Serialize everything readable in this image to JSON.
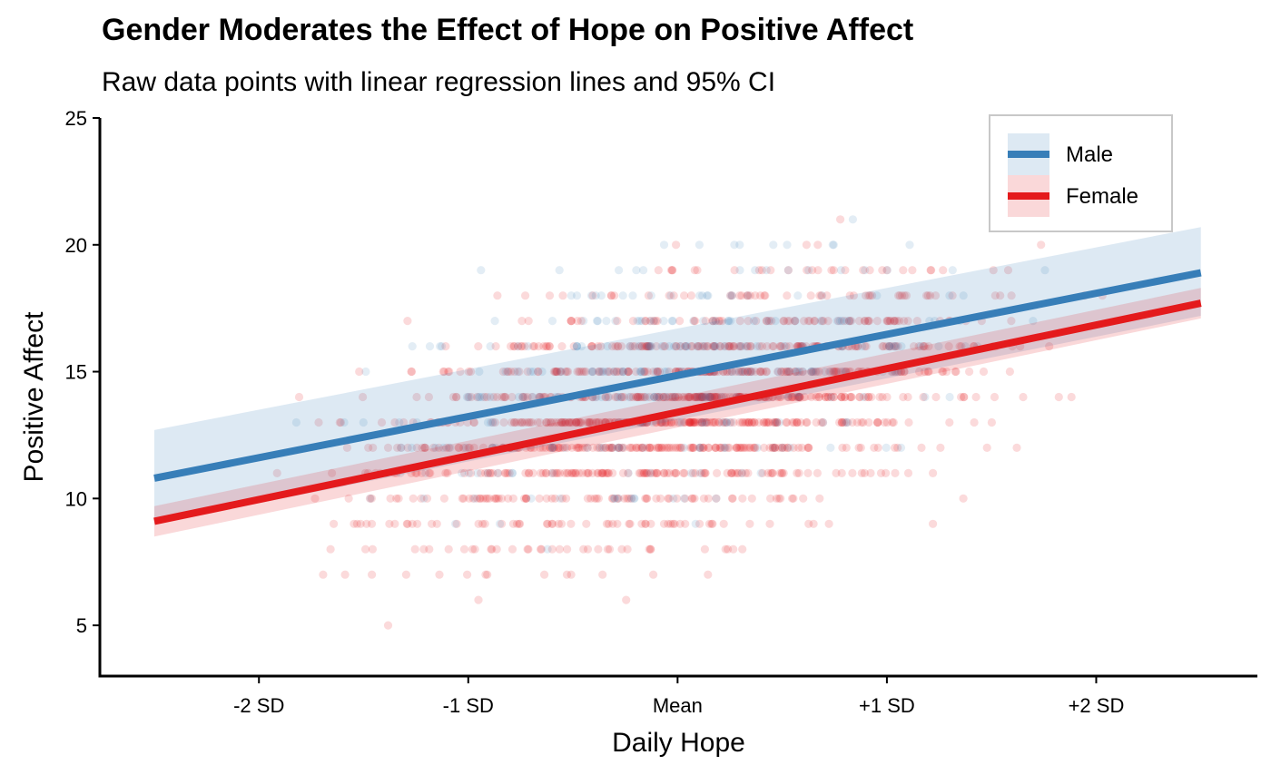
{
  "chart_data": {
    "type": "scatter",
    "title": "Gender Moderates the Effect of Hope on Positive Affect",
    "subtitle": "Raw data points with linear regression lines and 95% CI",
    "xlabel": "Daily Hope",
    "ylabel": "Positive Affect",
    "x_tick_labels": [
      "-2 SD",
      "-1 SD",
      "Mean",
      "+1 SD",
      "+2 SD"
    ],
    "x_tick_values": [
      -2,
      -1,
      0,
      1,
      2
    ],
    "xlim": [
      -2.76,
      2.77
    ],
    "ylim": [
      3,
      25
    ],
    "y_ticks": [
      5,
      10,
      15,
      20,
      25
    ],
    "grid": false,
    "legend_position": "top-right",
    "legend": [
      "Male",
      "Female"
    ],
    "series": [
      {
        "name": "Male",
        "color": "#377eb8",
        "fit_line": {
          "x": [
            -2.5,
            2.5
          ],
          "y": [
            10.8,
            18.9
          ]
        },
        "ci_band": {
          "x": [
            -2.5,
            2.5
          ],
          "lower": [
            9.0,
            17.2
          ],
          "upper": [
            12.7,
            20.7
          ]
        }
      },
      {
        "name": "Female",
        "color": "#e41a1c",
        "fit_line": {
          "x": [
            -2.5,
            2.5
          ],
          "y": [
            9.1,
            17.7
          ]
        },
        "ci_band": {
          "x": [
            -2.5,
            2.5
          ],
          "lower": [
            8.5,
            17.1
          ],
          "upper": [
            9.7,
            18.3
          ]
        }
      }
    ],
    "points_note_values": "integer-valued Positive Affect scores from 4 to 24, spread across Daily Hope roughly -2.5 to +2.5 SD; Female points dominate"
  }
}
